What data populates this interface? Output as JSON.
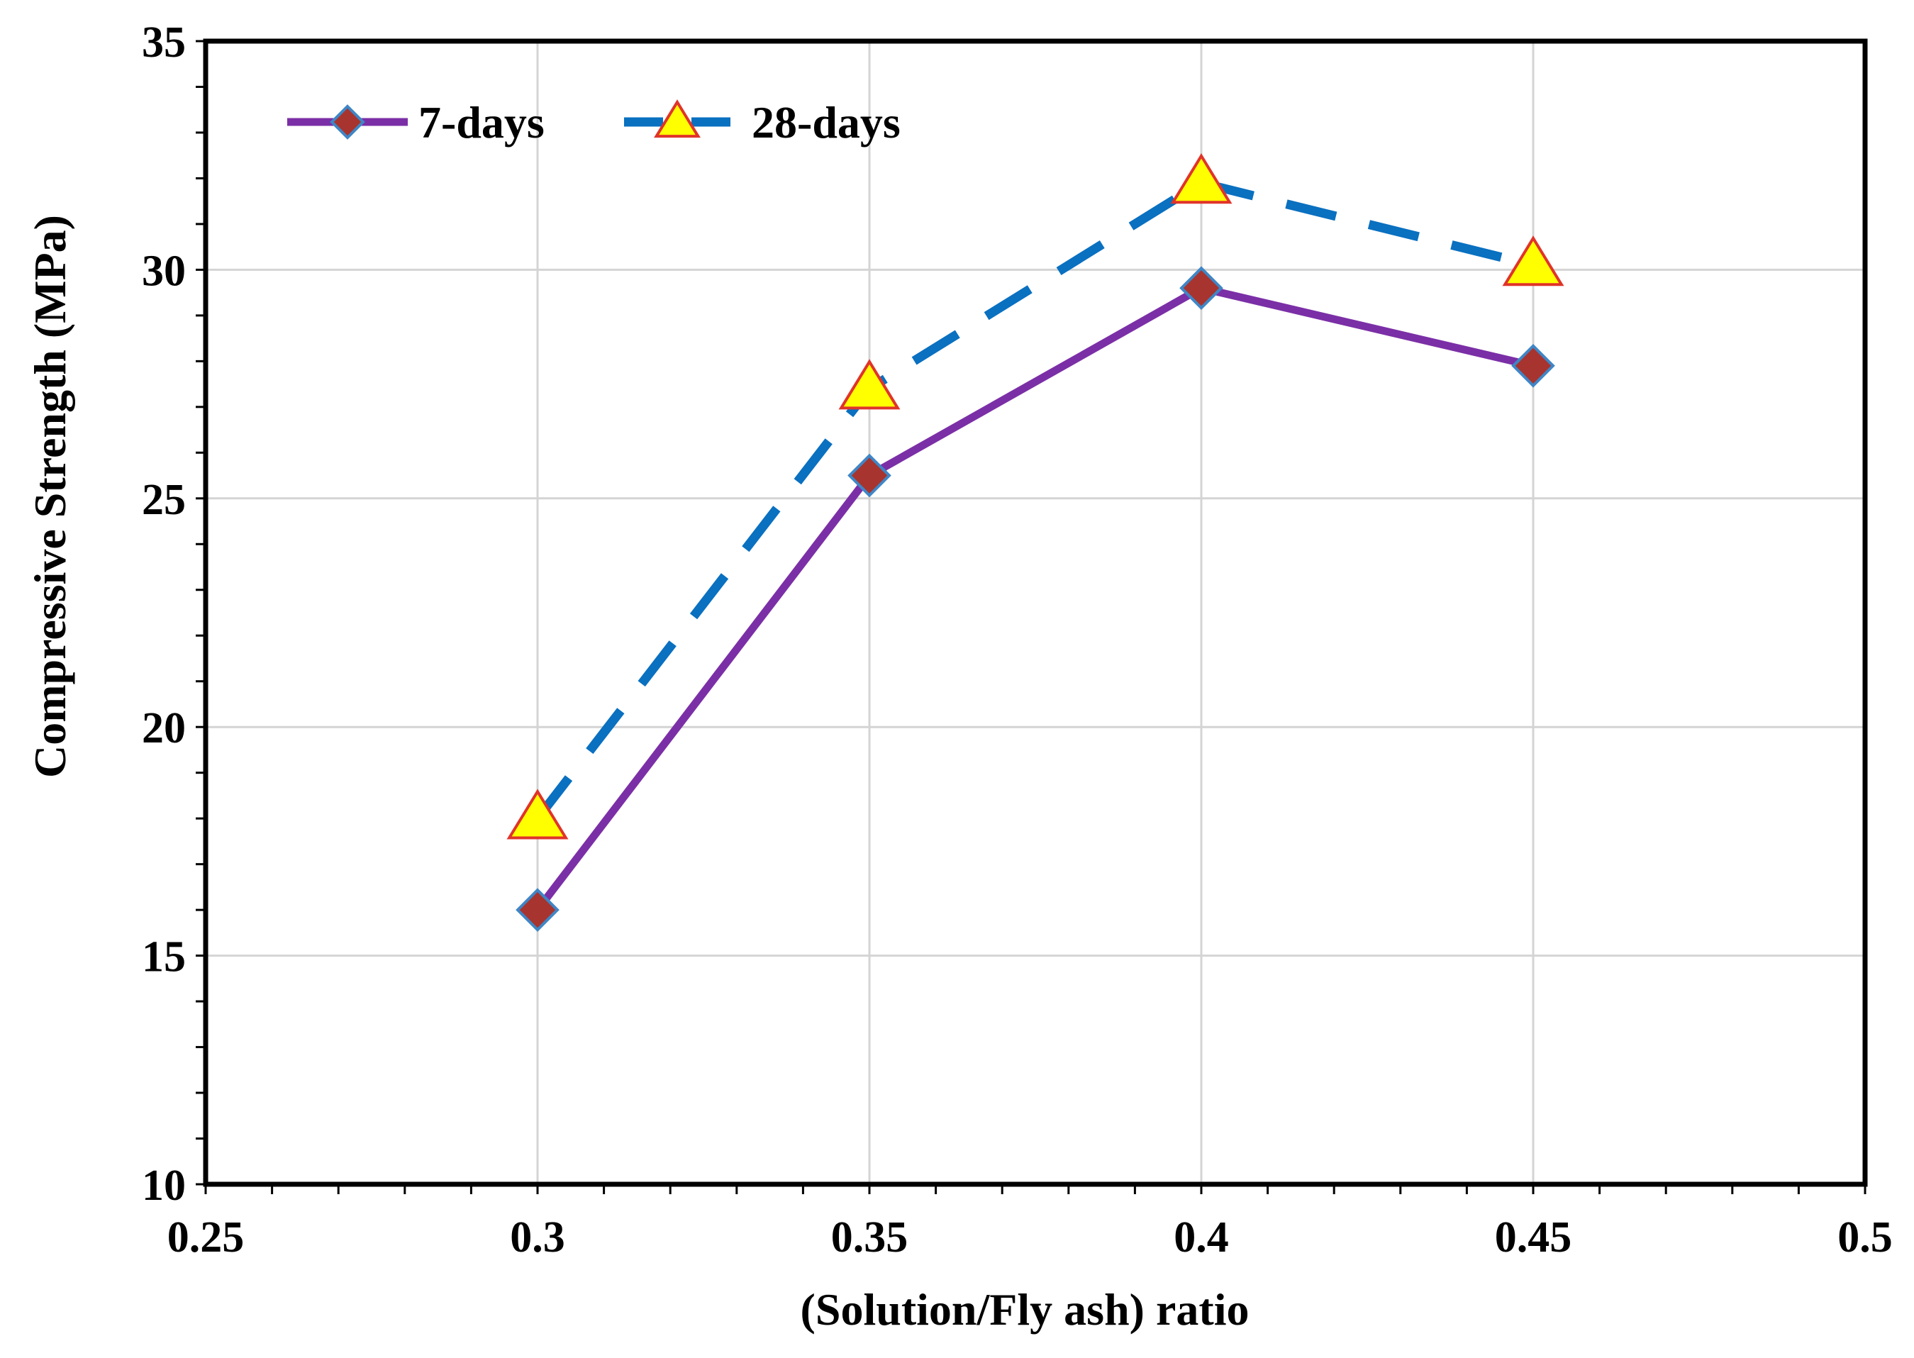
{
  "chart_data": {
    "type": "line",
    "title": "",
    "xlabel": "(Solution/Fly ash) ratio",
    "ylabel": "Compressive Strength (MPa)",
    "xlim": [
      0.25,
      0.5
    ],
    "ylim": [
      10,
      35
    ],
    "x_ticks": [
      0.25,
      0.3,
      0.35,
      0.4,
      0.45,
      0.5
    ],
    "x_tick_labels": [
      "0.25",
      "0.3",
      "0.35",
      "0.4",
      "0.45",
      "0.5"
    ],
    "y_ticks": [
      10,
      15,
      20,
      25,
      30,
      35
    ],
    "y_tick_labels": [
      "10",
      "15",
      "20",
      "25",
      "30",
      "35"
    ],
    "grid": true,
    "legend_position": "top-left",
    "x": [
      0.3,
      0.35,
      0.4,
      0.45
    ],
    "series": [
      {
        "name": "7-days",
        "values": [
          16.0,
          25.5,
          29.6,
          27.9
        ],
        "line_color": "#7B2FA6",
        "line_style": "solid",
        "marker": "diamond",
        "marker_fill": "#A7342E",
        "marker_edge": "#3F86C6"
      },
      {
        "name": "28-days",
        "values": [
          18.0,
          27.4,
          31.9,
          30.1
        ],
        "line_color": "#0A70C0",
        "line_style": "dashed",
        "marker": "triangle",
        "marker_fill": "#FFFF00",
        "marker_edge": "#E0342A"
      }
    ]
  }
}
